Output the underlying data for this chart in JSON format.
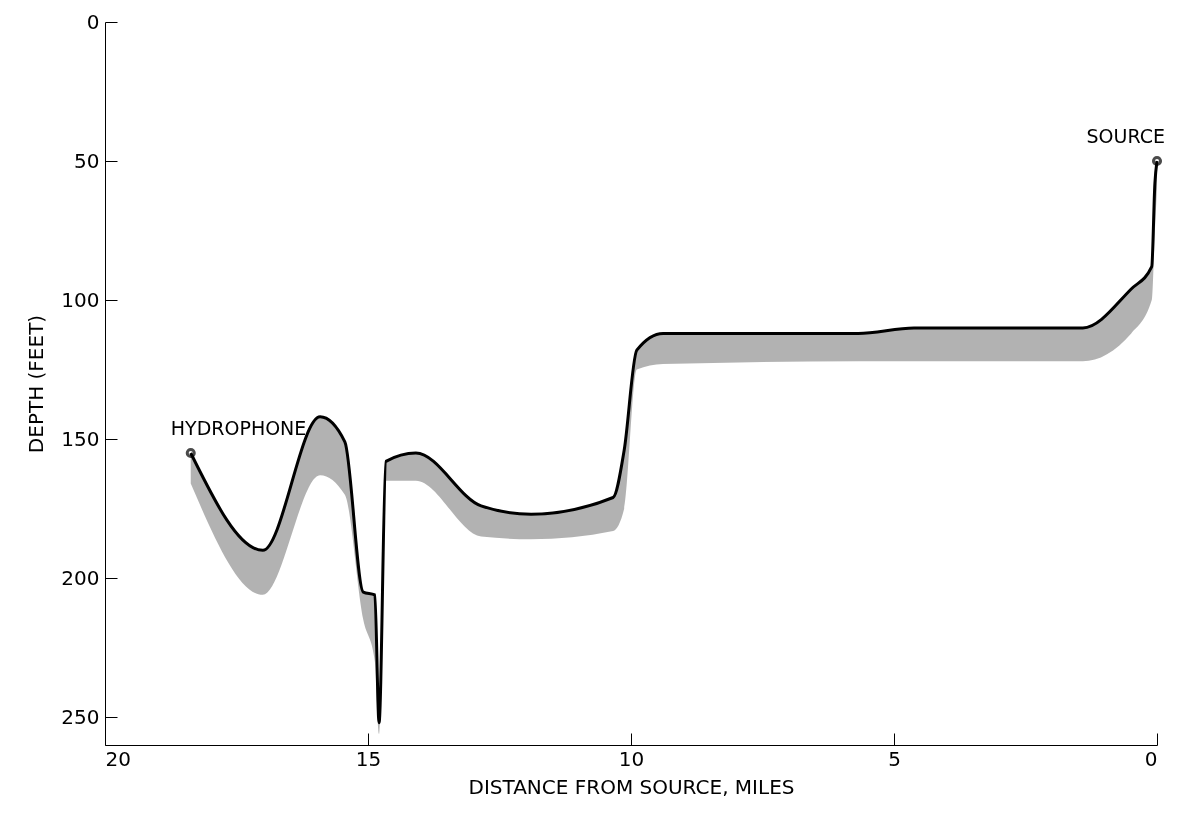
{
  "chart_data": {
    "type": "line",
    "xlabel": "DISTANCE FROM SOURCE, MILES",
    "ylabel": "DEPTH (FEET)",
    "x": [
      18.37,
      17.0,
      15.91,
      15.44,
      15.09,
      14.87,
      14.79,
      14.66,
      14.09,
      12.85,
      11.9,
      10.34,
      10.13,
      9.89,
      9.39,
      5.68,
      4.62,
      1.41,
      0.49,
      0.1,
      0.04,
      0.0
    ],
    "series": [
      {
        "color": "#000000",
        "values": [
          155,
          190,
          142,
          151,
          205,
          206,
          252,
          158,
          155,
          174,
          177,
          171,
          154,
          118,
          112,
          112,
          110,
          110,
          96,
          88,
          58,
          50
        ],
        "lower": [
          155,
          190,
          142,
          151,
          205,
          206,
          252,
          158,
          155,
          174,
          177,
          171,
          154,
          118,
          112,
          112,
          110,
          110,
          96,
          88,
          58,
          50
        ],
        "upper": [
          166,
          206,
          163,
          170,
          215,
          230,
          256,
          165,
          165,
          185,
          186,
          183,
          175,
          125,
          123,
          122,
          122,
          122,
          112,
          100,
          75,
          60
        ]
      }
    ],
    "xlim": [
      20,
      0
    ],
    "xticks": [
      20,
      15,
      10,
      5,
      0
    ],
    "ylim": [
      260,
      0
    ],
    "yticks": [
      0,
      50,
      100,
      150,
      200,
      250
    ],
    "grid": false,
    "marker": "none",
    "line_style": "solid",
    "annotations": [
      {
        "text": "SOURCE",
        "x": 0,
        "y": 50
      },
      {
        "text": "HYDROPHONE",
        "x": 18.37,
        "y": 155
      }
    ]
  }
}
